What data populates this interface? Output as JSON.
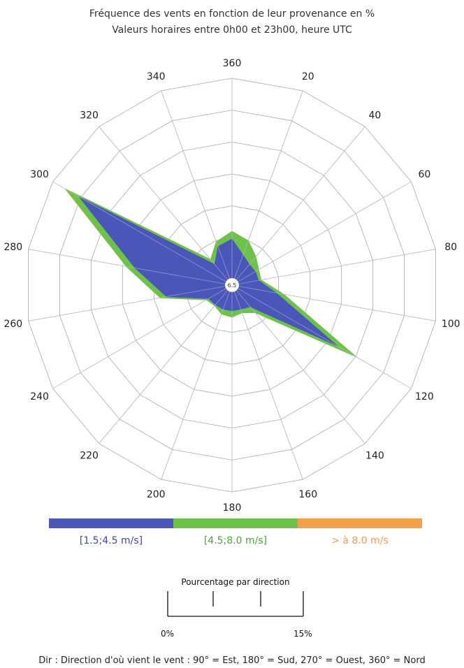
{
  "header": {
    "title": "Fréquence des vents en fonction de leur provenance en %",
    "subtitle": "Valeurs horaires entre 0h00 et 23h00, heure UTC"
  },
  "chart_data": {
    "type": "radar-stacked",
    "title": "Fréquence des vents en fonction de leur provenance en %",
    "subtitle": "Valeurs horaires entre 0h00 et 23h00, heure UTC",
    "directions": [
      "360",
      "20",
      "40",
      "60",
      "80",
      "100",
      "120",
      "140",
      "160",
      "180",
      "200",
      "220",
      "240",
      "260",
      "280",
      "300",
      "320",
      "340"
    ],
    "center_label": "6.5",
    "max_percent": 15,
    "grid": true,
    "series": [
      {
        "name": "[1.5;4.5 m/s]",
        "color": "#4a56b8",
        "values": [
          2.4,
          1.3,
          0.9,
          0.9,
          0.9,
          2.3,
          8.3,
          1.0,
          0.8,
          0.8,
          0.8,
          0.8,
          0.9,
          4.0,
          6.5,
          12.6,
          0.9,
          2.0
        ]
      },
      {
        "name": "[4.5;8.0 m/s]",
        "color": "#6cc24a",
        "values": [
          3.0,
          2.5,
          1.7,
          1.2,
          1.1,
          2.9,
          10.0,
          1.6,
          1.1,
          1.3,
          1.2,
          0.9,
          1.1,
          4.5,
          7.2,
          13.8,
          1.4,
          2.4
        ]
      },
      {
        "name": "> à 8.0 m/s",
        "color": "#f5a048",
        "values": [
          3.0,
          2.5,
          1.7,
          1.2,
          1.1,
          2.9,
          10.0,
          1.6,
          1.1,
          1.3,
          1.2,
          0.9,
          1.1,
          4.5,
          7.2,
          13.9,
          1.4,
          2.4
        ]
      }
    ]
  },
  "legend": {
    "items": [
      {
        "label": "[1.5;4.5 m/s]",
        "color": "#4a56b8",
        "text_color": "#3b46a8"
      },
      {
        "label": "[4.5;8.0 m/s]",
        "color": "#6cc24a",
        "text_color": "#4aa63a"
      },
      {
        "label": "> à 8.0 m/s",
        "color": "#f5a048",
        "text_color": "#ef9a55"
      }
    ]
  },
  "scale": {
    "title": "Pourcentage par direction",
    "min_label": "0%",
    "max_label": "15%"
  },
  "footnote": "Dir : Direction d'où vient le vent : 90° = Est, 180° = Sud, 270° = Ouest, 360° = Nord"
}
